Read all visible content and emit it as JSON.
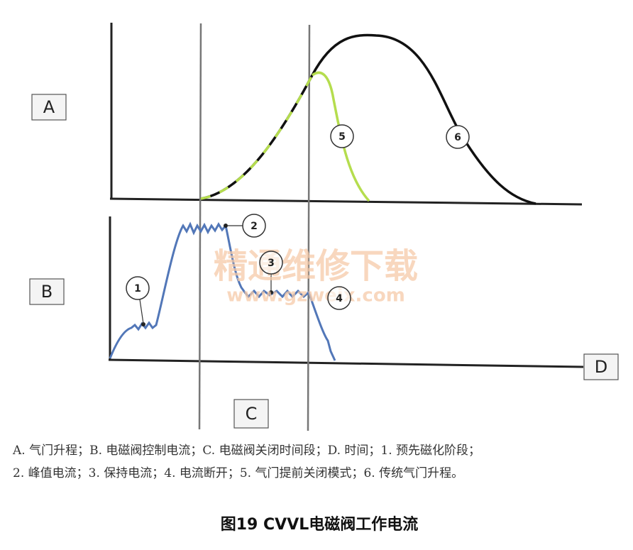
{
  "axis_labels": {
    "valve_lift": "A",
    "current": "B",
    "close_period": "C",
    "time": "D"
  },
  "markers": [
    "1",
    "2",
    "3",
    "4",
    "5",
    "6"
  ],
  "watermark": {
    "title": "精通维修下载",
    "url": "www.gzweix.com"
  },
  "caption": {
    "line1": "A. 气门升程；B. 电磁阀控制电流；C. 电磁阀关闭时间段；D. 时间；1. 预先磁化阶段；",
    "line2": "2. 峰值电流；3. 保持电流；4. 电流断开；5. 气门提前关闭模式；6. 传统气门升程。"
  },
  "figure_title": "图19 CVVL电磁阀工作电流"
}
